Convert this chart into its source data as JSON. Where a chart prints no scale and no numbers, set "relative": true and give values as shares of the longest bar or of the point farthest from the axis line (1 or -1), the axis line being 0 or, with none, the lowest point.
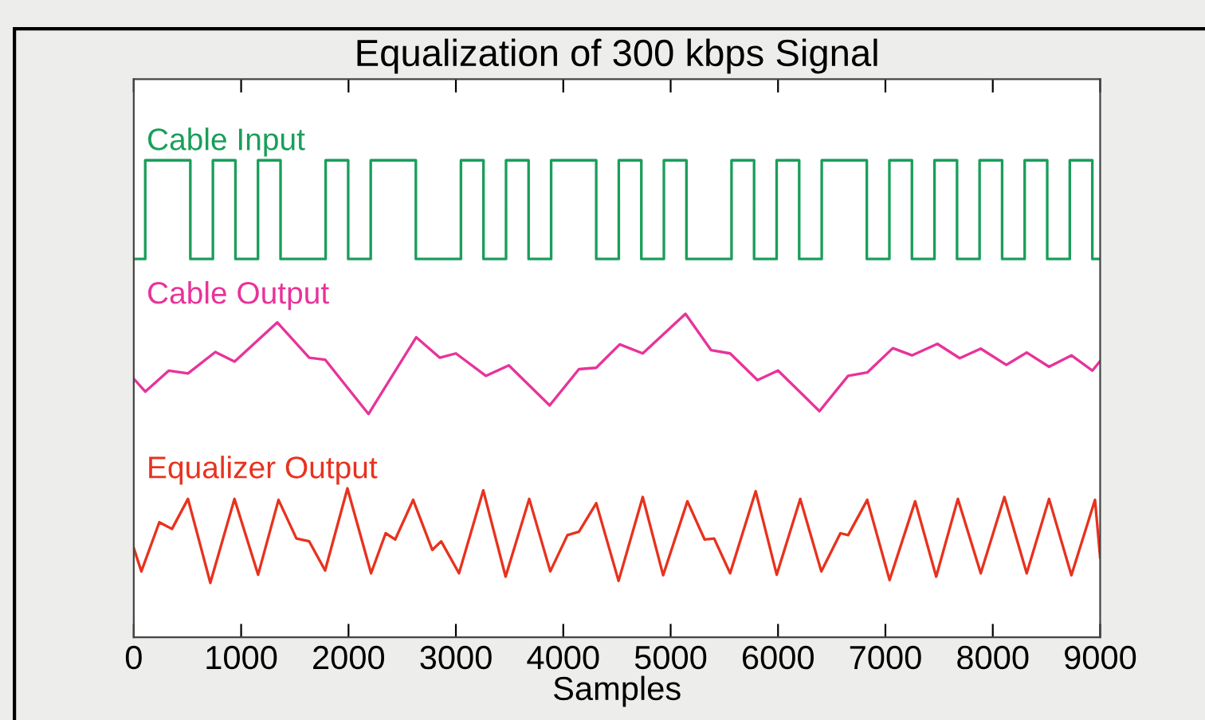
{
  "chart_data": {
    "type": "line",
    "title": "Equalization of 300 kbps Signal",
    "xlabel": "Samples",
    "relative": true,
    "xlim": [
      0,
      9000
    ],
    "xticks": [
      0,
      1000,
      2000,
      3000,
      4000,
      5000,
      6000,
      7000,
      8000,
      9000
    ],
    "grid": false,
    "legend": false,
    "marker": "none",
    "line_style": "solid",
    "series": [
      {
        "name": "Cable Input",
        "type": "step",
        "color": "#1a9e5a",
        "x": [
          0,
          107,
          527,
          737,
          947,
          1157,
          1367,
          1787,
          1997,
          2207,
          2627,
          3047,
          3257,
          3467,
          3677,
          3887,
          4307,
          4517,
          4727,
          4937,
          5147,
          5567,
          5777,
          5987,
          6197,
          6407,
          6827,
          7037,
          7247,
          7457,
          7667,
          7877,
          8087,
          8297,
          8507,
          8717,
          8927,
          9000
        ],
        "values": [
          0.793,
          1.0,
          0.793,
          1.0,
          0.793,
          1.0,
          0.793,
          1.0,
          0.793,
          1.0,
          0.793,
          1.0,
          0.793,
          1.0,
          0.793,
          1.0,
          0.793,
          1.0,
          0.793,
          1.0,
          0.793,
          1.0,
          0.793,
          1.0,
          0.793,
          1.0,
          0.793,
          1.0,
          0.793,
          1.0,
          0.793,
          1.0,
          0.793,
          1.0,
          0.793,
          1.0,
          0.793,
          0.793
        ]
      },
      {
        "name": "Cable Output",
        "color": "#e8339a",
        "x": [
          0,
          107,
          327,
          505,
          760,
          939,
          1337,
          1634,
          1782,
          2186,
          2631,
          2851,
          3000,
          3279,
          3493,
          3873,
          4146,
          4307,
          4526,
          4740,
          5138,
          5376,
          5554,
          5809,
          6000,
          6386,
          6653,
          6831,
          7069,
          7247,
          7484,
          7692,
          7888,
          8126,
          8316,
          8524,
          8732,
          8928,
          9000
        ],
        "values": [
          0.542,
          0.515,
          0.559,
          0.553,
          0.598,
          0.578,
          0.66,
          0.586,
          0.582,
          0.468,
          0.629,
          0.586,
          0.595,
          0.548,
          0.57,
          0.486,
          0.562,
          0.565,
          0.614,
          0.595,
          0.678,
          0.602,
          0.595,
          0.539,
          0.559,
          0.474,
          0.548,
          0.555,
          0.606,
          0.591,
          0.615,
          0.585,
          0.605,
          0.571,
          0.597,
          0.567,
          0.591,
          0.559,
          0.579
        ]
      },
      {
        "name": "Equalizer Output",
        "color": "#e8321e",
        "x": [
          0,
          71,
          238,
          356,
          505,
          713,
          938,
          1158,
          1348,
          1515,
          1634,
          1782,
          1990,
          2210,
          2346,
          2435,
          2602,
          2780,
          2863,
          3029,
          3255,
          3463,
          3683,
          3879,
          4039,
          4146,
          4307,
          4515,
          4740,
          4930,
          5156,
          5316,
          5405,
          5554,
          5792,
          5988,
          6207,
          6403,
          6581,
          6653,
          6831,
          7039,
          7277,
          7473,
          7675,
          7888,
          8108,
          8316,
          8524,
          8732,
          8952,
          9000
        ],
        "values": [
          0.187,
          0.138,
          0.241,
          0.227,
          0.29,
          0.114,
          0.29,
          0.131,
          0.288,
          0.207,
          0.201,
          0.14,
          0.312,
          0.134,
          0.218,
          0.205,
          0.288,
          0.183,
          0.201,
          0.134,
          0.308,
          0.127,
          0.29,
          0.138,
          0.214,
          0.221,
          0.281,
          0.118,
          0.294,
          0.13,
          0.285,
          0.205,
          0.207,
          0.134,
          0.306,
          0.131,
          0.29,
          0.138,
          0.218,
          0.214,
          0.288,
          0.12,
          0.285,
          0.127,
          0.29,
          0.134,
          0.294,
          0.134,
          0.29,
          0.13,
          0.288,
          0.167
        ]
      }
    ]
  }
}
